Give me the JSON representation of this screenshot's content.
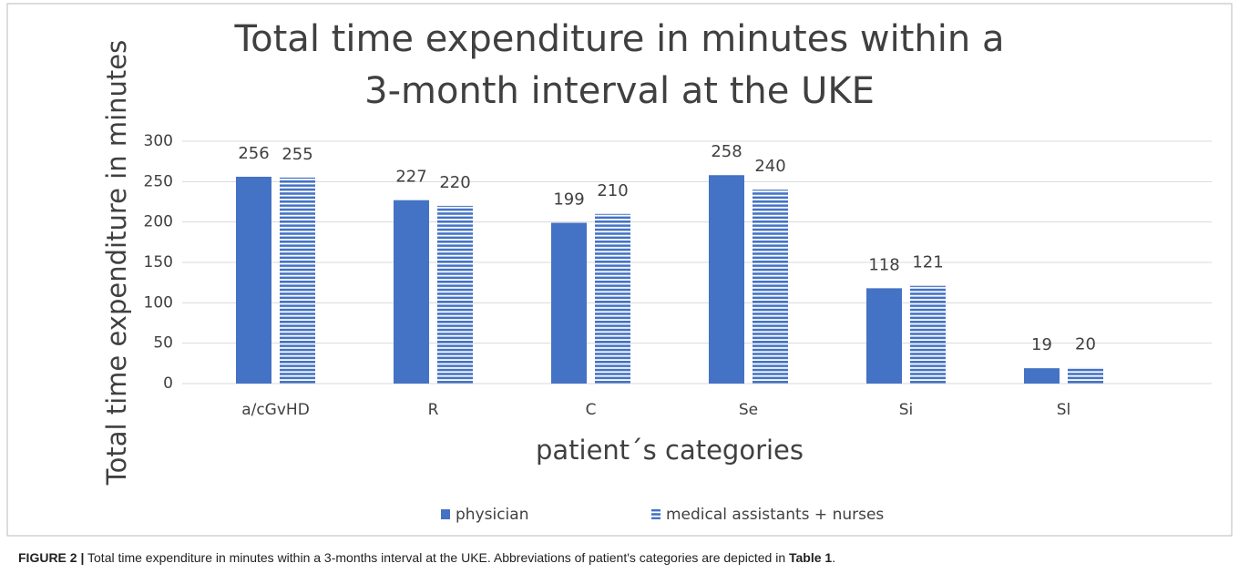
{
  "chart_data": {
    "type": "bar",
    "title": [
      "Total time expenditure in minutes within a",
      "3-month interval at the UKE"
    ],
    "x_label": "patient´s categories",
    "y_label": "Total time expenditure in minutes",
    "categories": [
      "a/cGvHD",
      "R",
      "C",
      "Se",
      "Si",
      "Sl"
    ],
    "series": [
      {
        "name": "physician",
        "color": "#4472c4",
        "pattern": "solid",
        "values": [
          256,
          227,
          199,
          258,
          118,
          19
        ]
      },
      {
        "name": "medical assistants + nurses",
        "color": "#4472c4",
        "pattern": "horizontal-stripes",
        "values": [
          255,
          220,
          210,
          240,
          121,
          20
        ]
      }
    ],
    "ylim": [
      0,
      300
    ],
    "yticks": [
      0,
      50,
      100,
      150,
      200,
      250,
      300
    ],
    "grid": true,
    "legend": "bottom"
  },
  "caption": {
    "label": "FIGURE 2 |",
    "text": " Total time expenditure in minutes within a 3-months interval at the UKE. Abbreviations of patient's categories are depicted in ",
    "ref": "Table 1",
    "end": "."
  }
}
